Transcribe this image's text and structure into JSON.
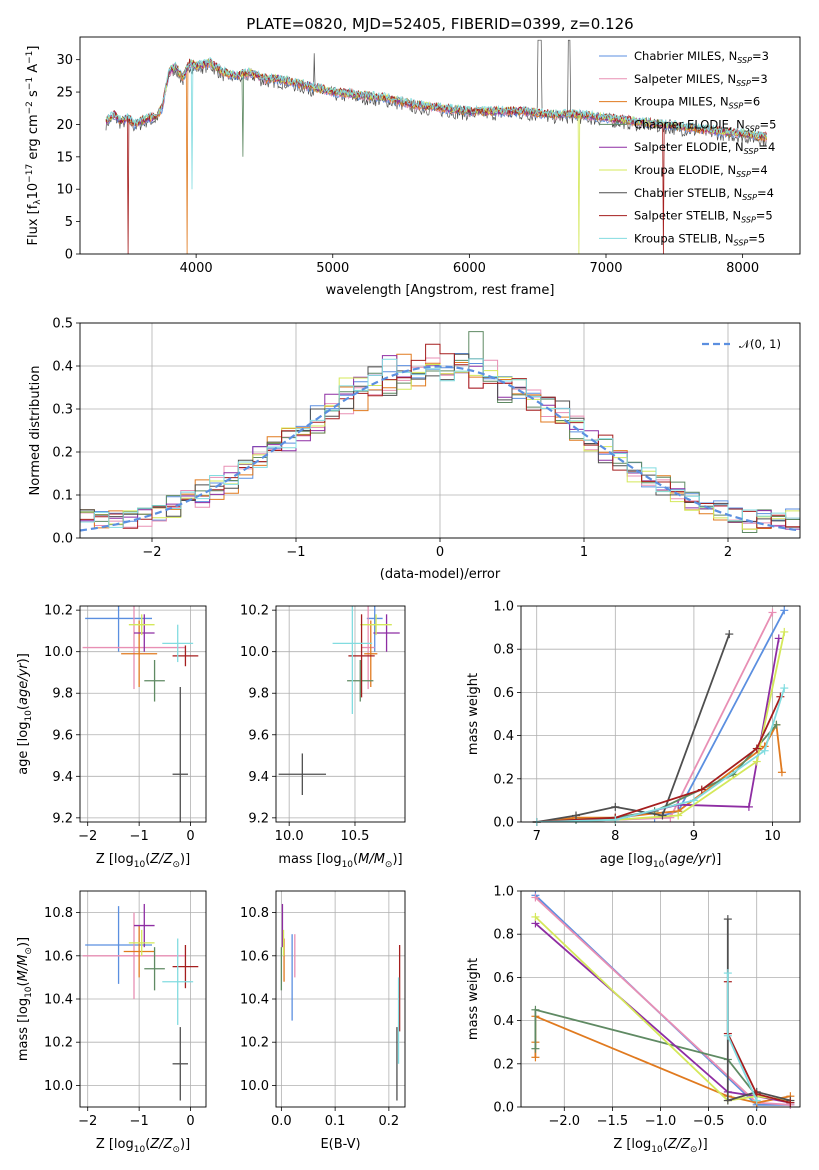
{
  "title": "PLATE=0820, MJD=52405, FIBERID=0399, z=0.126",
  "colors": {
    "Chabrier MILES": "#5b8fe0",
    "Salpeter MILES": "#e88fb4",
    "Kroupa MILES": "#e07a1f",
    "Chabrier ELODIE": "#5f8a63",
    "Salpeter ELODIE": "#8e2da3",
    "Kroupa ELODIE": "#d4e85a",
    "Chabrier STELIB": "#4f4f4f",
    "Salpeter STELIB": "#a51e1e",
    "Kroupa STELIB": "#82dce0"
  },
  "chart_data": [
    {
      "id": "spectrum",
      "type": "line",
      "xlabel": "wavelength [Angstrom, rest frame]",
      "ylabel_parts": [
        "Flux [f",
        "λ",
        "10",
        "−17",
        " erg cm",
        "−2",
        " s",
        "−1",
        " A",
        "−1",
        "]"
      ],
      "xlim": [
        3150,
        8420
      ],
      "ylim": [
        0,
        33.5
      ],
      "xticks": [
        4000,
        5000,
        6000,
        7000,
        8000
      ],
      "yticks": [
        0,
        5,
        10,
        15,
        20,
        25,
        30
      ],
      "legend_position": "top-right",
      "legend": [
        {
          "base": "Chabrier MILES, N",
          "sub": "SSP",
          "tail": "=3",
          "model": "Chabrier MILES"
        },
        {
          "base": "Salpeter MILES, N",
          "sub": "SSP",
          "tail": "=3",
          "model": "Salpeter MILES"
        },
        {
          "base": "Kroupa MILES, N",
          "sub": "SSP",
          "tail": "=6",
          "model": "Kroupa MILES"
        },
        {
          "base": "Chabrier ELODIE, N",
          "sub": "SSP",
          "tail": "=5",
          "model": "Chabrier ELODIE"
        },
        {
          "base": "Salpeter ELODIE, N",
          "sub": "SSP",
          "tail": "=4",
          "model": "Salpeter ELODIE"
        },
        {
          "base": "Kroupa ELODIE, N",
          "sub": "SSP",
          "tail": "=4",
          "model": "Kroupa ELODIE"
        },
        {
          "base": "Chabrier STELIB, N",
          "sub": "SSP",
          "tail": "=4",
          "model": "Chabrier STELIB"
        },
        {
          "base": "Salpeter STELIB, N",
          "sub": "SSP",
          "tail": "=5",
          "model": "Salpeter STELIB"
        },
        {
          "base": "Kroupa STELIB, N",
          "sub": "SSP",
          "tail": "=5",
          "model": "Kroupa STELIB"
        }
      ],
      "data_x": [
        3340,
        3400,
        3450,
        3500,
        3550,
        3600,
        3650,
        3700,
        3750,
        3800,
        3850,
        3900,
        3950,
        4000,
        4100,
        4200,
        4300,
        4400,
        4500,
        4600,
        4800,
        5000,
        5200,
        5400,
        5600,
        5800,
        6000,
        6200,
        6400,
        6600,
        6800,
        7000,
        7200,
        7400,
        7600,
        7800,
        8000,
        8180
      ],
      "data_y": [
        20.5,
        21.5,
        20.5,
        21,
        20,
        20.5,
        21,
        21,
        22.5,
        28,
        29,
        27,
        29.5,
        29,
        29.5,
        28,
        27.5,
        28,
        27,
        27,
        26,
        25,
        24.5,
        24,
        23,
        22.5,
        22,
        22,
        22,
        21.5,
        21.5,
        21,
        20.5,
        20,
        19.5,
        19,
        18.5,
        18
      ],
      "drops": [
        {
          "x": 3500,
          "y": 0,
          "model": "Salpeter STELIB"
        },
        {
          "x": 3933,
          "y": 0,
          "model": "Kroupa MILES"
        },
        {
          "x": 3968,
          "y": 10,
          "model": "Kroupa STELIB"
        },
        {
          "x": 4340,
          "y": 15,
          "model": "Chabrier ELODIE"
        },
        {
          "x": 6800,
          "y": 0,
          "model": "Kroupa ELODIE"
        },
        {
          "x": 7420,
          "y": 0,
          "model": "Salpeter STELIB"
        }
      ]
    },
    {
      "id": "residuals",
      "type": "histogram",
      "xlabel": "(data-model)/error",
      "ylabel": "Normed distribution",
      "xlim": [
        -2.5,
        2.5
      ],
      "ylim": [
        0,
        0.5
      ],
      "xticks": [
        -2,
        -1,
        0,
        1,
        2
      ],
      "yticks": [
        0.0,
        0.1,
        0.2,
        0.3,
        0.4,
        0.5
      ],
      "legend_position": "top-right",
      "legend_label": "𝒩(0, 1)",
      "reference_curve": {
        "name": "N(0,1)",
        "mean": 0,
        "sigma": 1,
        "color": "#5b8fe0"
      },
      "bin_width": 0.1
    },
    {
      "id": "age-vs-Z",
      "type": "errorbar",
      "xlabel_parts": [
        "Z [log",
        "10",
        "(",
        "Z/Z",
        "⊙",
        ")]"
      ],
      "ylabel_parts": [
        "age  [log",
        "10",
        "(",
        "age/yr",
        ")]"
      ],
      "xlim": [
        -2.15,
        0.3
      ],
      "ylim": [
        9.18,
        10.22
      ],
      "xticks": [
        -2,
        -1,
        0
      ],
      "yticks": [
        9.2,
        9.4,
        9.6,
        9.8,
        10.0,
        10.2
      ],
      "points": [
        {
          "model": "Chabrier MILES",
          "x": -1.4,
          "xerr": 0.65,
          "y": 10.16,
          "yerr": 0.16
        },
        {
          "model": "Salpeter MILES",
          "x": -1.1,
          "xerr": 1.0,
          "y": 10.02,
          "yerr": 0.2
        },
        {
          "model": "Kroupa MILES",
          "x": -1.0,
          "xerr": 0.35,
          "y": 9.99,
          "yerr": 0.16
        },
        {
          "model": "Chabrier ELODIE",
          "x": -0.7,
          "xerr": 0.2,
          "y": 9.86,
          "yerr": 0.1
        },
        {
          "model": "Salpeter ELODIE",
          "x": -0.9,
          "xerr": 0.2,
          "y": 10.09,
          "yerr": 0.09
        },
        {
          "model": "Kroupa ELODIE",
          "x": -0.95,
          "xerr": 0.25,
          "y": 10.13,
          "yerr": 0.05
        },
        {
          "model": "Chabrier STELIB",
          "x": -0.2,
          "xerr": 0.15,
          "y": 9.41,
          "yerr": 0.42
        },
        {
          "model": "Salpeter STELIB",
          "x": -0.1,
          "xerr": 0.25,
          "y": 9.98,
          "yerr": 0.05
        },
        {
          "model": "Kroupa STELIB",
          "x": -0.25,
          "xerr": 0.3,
          "y": 10.04,
          "yerr": 0.09
        }
      ]
    },
    {
      "id": "age-vs-mass",
      "type": "errorbar",
      "xlabel_parts": [
        "mass [log",
        "10",
        "(",
        "M/M",
        "⊙",
        ")]"
      ],
      "ylabel_parts": [],
      "xlim": [
        9.9,
        10.88
      ],
      "ylim": [
        9.18,
        10.22
      ],
      "xticks": [
        10.0,
        10.5
      ],
      "yticks": [
        9.2,
        9.4,
        9.6,
        9.8,
        10.0,
        10.2
      ],
      "points": [
        {
          "model": "Chabrier MILES",
          "x": 10.65,
          "xerr": 0.06,
          "y": 10.16,
          "yerr": 0.16
        },
        {
          "model": "Salpeter MILES",
          "x": 10.6,
          "xerr": 0.05,
          "y": 10.02,
          "yerr": 0.2
        },
        {
          "model": "Kroupa MILES",
          "x": 10.62,
          "xerr": 0.05,
          "y": 9.99,
          "yerr": 0.16
        },
        {
          "model": "Chabrier ELODIE",
          "x": 10.54,
          "xerr": 0.1,
          "y": 9.86,
          "yerr": 0.1
        },
        {
          "model": "Salpeter ELODIE",
          "x": 10.74,
          "xerr": 0.1,
          "y": 10.09,
          "yerr": 0.09
        },
        {
          "model": "Kroupa ELODIE",
          "x": 10.66,
          "xerr": 0.12,
          "y": 10.13,
          "yerr": 0.05
        },
        {
          "model": "Chabrier STELIB",
          "x": 10.1,
          "xerr": 0.18,
          "y": 9.41,
          "yerr": 0.1
        },
        {
          "model": "Salpeter STELIB",
          "x": 10.55,
          "xerr": 0.1,
          "y": 9.98,
          "yerr": 0.2
        },
        {
          "model": "Kroupa STELIB",
          "x": 10.48,
          "xerr": 0.15,
          "y": 10.04,
          "yerr": 0.34
        }
      ]
    },
    {
      "id": "weight-vs-age",
      "type": "line",
      "xlabel_parts": [
        "age  [log",
        "10",
        "(",
        "age/yr",
        ")]"
      ],
      "ylabel": "mass weight",
      "xlim": [
        6.8,
        10.35
      ],
      "ylim": [
        0,
        1.0
      ],
      "xticks": [
        7,
        8,
        9,
        10
      ],
      "yticks": [
        0.0,
        0.2,
        0.4,
        0.6,
        0.8,
        1.0
      ],
      "series": [
        {
          "model": "Chabrier MILES",
          "x": [
            7.0,
            7.5,
            8.0,
            8.5,
            8.8,
            10.15
          ],
          "y": [
            0.0,
            0.01,
            0.01,
            0.02,
            0.05,
            0.98
          ]
        },
        {
          "model": "Salpeter MILES",
          "x": [
            7.0,
            8.0,
            8.7,
            10.0
          ],
          "y": [
            0.0,
            0.01,
            0.02,
            0.97
          ]
        },
        {
          "model": "Kroupa MILES",
          "x": [
            7.0,
            7.5,
            8.0,
            8.5,
            8.8,
            9.9,
            10.05,
            10.12
          ],
          "y": [
            0.0,
            0.02,
            0.02,
            0.04,
            0.05,
            0.35,
            0.45,
            0.23
          ]
        },
        {
          "model": "Chabrier ELODIE",
          "x": [
            7.0,
            7.5,
            8.0,
            8.5,
            9.5,
            10.05
          ],
          "y": [
            0.0,
            0.01,
            0.02,
            0.05,
            0.22,
            0.45
          ]
        },
        {
          "model": "Salpeter ELODIE",
          "x": [
            7.0,
            8.0,
            8.8,
            9.7,
            10.08
          ],
          "y": [
            0.0,
            0.01,
            0.08,
            0.07,
            0.85
          ]
        },
        {
          "model": "Kroupa ELODIE",
          "x": [
            7.0,
            8.0,
            8.8,
            9.8,
            10.15
          ],
          "y": [
            0.0,
            0.01,
            0.03,
            0.28,
            0.88
          ]
        },
        {
          "model": "Chabrier STELIB",
          "x": [
            7.0,
            7.5,
            8.0,
            8.6,
            9.45
          ],
          "y": [
            0.0,
            0.03,
            0.07,
            0.03,
            0.87
          ]
        },
        {
          "model": "Salpeter STELIB",
          "x": [
            7.0,
            8.0,
            9.1,
            9.8,
            10.1
          ],
          "y": [
            0.0,
            0.02,
            0.15,
            0.34,
            0.58
          ]
        },
        {
          "model": "Kroupa STELIB",
          "x": [
            7.0,
            8.0,
            9.0,
            9.9,
            10.15
          ],
          "y": [
            0.0,
            0.01,
            0.1,
            0.33,
            0.62
          ]
        }
      ]
    },
    {
      "id": "mass-vs-Z",
      "type": "errorbar",
      "xlabel_parts": [
        "Z [log",
        "10",
        "(",
        "Z/Z",
        "⊙",
        ")]"
      ],
      "ylabel_parts": [
        "mass [log",
        "10",
        "(",
        "M/M",
        "⊙",
        ")]"
      ],
      "xlim": [
        -2.15,
        0.3
      ],
      "ylim": [
        9.9,
        10.9
      ],
      "xticks": [
        -2,
        -1,
        0
      ],
      "yticks": [
        10.0,
        10.2,
        10.4,
        10.6,
        10.8
      ],
      "points": [
        {
          "model": "Chabrier MILES",
          "x": -1.4,
          "xerr": 0.65,
          "y": 10.65,
          "yerr": 0.18
        },
        {
          "model": "Salpeter MILES",
          "x": -1.1,
          "xerr": 1.0,
          "y": 10.6,
          "yerr": 0.2
        },
        {
          "model": "Kroupa MILES",
          "x": -1.0,
          "xerr": 0.3,
          "y": 10.62,
          "yerr": 0.12
        },
        {
          "model": "Chabrier ELODIE",
          "x": -0.7,
          "xerr": 0.2,
          "y": 10.54,
          "yerr": 0.1
        },
        {
          "model": "Salpeter ELODIE",
          "x": -0.9,
          "xerr": 0.2,
          "y": 10.74,
          "yerr": 0.1
        },
        {
          "model": "Kroupa ELODIE",
          "x": -0.95,
          "xerr": 0.25,
          "y": 10.66,
          "yerr": 0.06
        },
        {
          "model": "Chabrier STELIB",
          "x": -0.2,
          "xerr": 0.15,
          "y": 10.1,
          "yerr": 0.17
        },
        {
          "model": "Salpeter STELIB",
          "x": -0.1,
          "xerr": 0.25,
          "y": 10.55,
          "yerr": 0.1
        },
        {
          "model": "Kroupa STELIB",
          "x": -0.25,
          "xerr": 0.3,
          "y": 10.48,
          "yerr": 0.2
        }
      ]
    },
    {
      "id": "mass-vs-ebv",
      "type": "errorbar",
      "xlabel": "E(B-V)",
      "xlim": [
        -0.01,
        0.23
      ],
      "ylim": [
        9.9,
        10.9
      ],
      "xticks": [
        0.0,
        0.1,
        0.2
      ],
      "yticks": [
        10.0,
        10.2,
        10.4,
        10.6,
        10.8
      ],
      "points": [
        {
          "model": "Chabrier MILES",
          "x": 0.02,
          "xerr": 0.0,
          "y": 10.5,
          "yerr": 0.2
        },
        {
          "model": "Salpeter MILES",
          "x": 0.025,
          "xerr": 0.0,
          "y": 10.6,
          "yerr": 0.1
        },
        {
          "model": "Kroupa MILES",
          "x": 0.005,
          "xerr": 0.0,
          "y": 10.58,
          "yerr": 0.1
        },
        {
          "model": "Chabrier ELODIE",
          "x": 0.0,
          "xerr": 0.0,
          "y": 10.54,
          "yerr": 0.1
        },
        {
          "model": "Salpeter ELODIE",
          "x": 0.002,
          "xerr": 0.0,
          "y": 10.74,
          "yerr": 0.1
        },
        {
          "model": "Kroupa ELODIE",
          "x": 0.004,
          "xerr": 0.0,
          "y": 10.66,
          "yerr": 0.06
        },
        {
          "model": "Chabrier STELIB",
          "x": 0.215,
          "xerr": 0.0,
          "y": 10.1,
          "yerr": 0.17
        },
        {
          "model": "Salpeter STELIB",
          "x": 0.22,
          "xerr": 0.0,
          "y": 10.45,
          "yerr": 0.2
        },
        {
          "model": "Kroupa STELIB",
          "x": 0.218,
          "xerr": 0.0,
          "y": 10.3,
          "yerr": 0.2
        }
      ]
    },
    {
      "id": "weight-vs-Z",
      "type": "line",
      "xlabel_parts": [
        "Z [log",
        "10",
        "(",
        "Z/Z",
        "⊙",
        ")]"
      ],
      "ylabel": "mass weight",
      "xlim": [
        -2.45,
        0.45
      ],
      "ylim": [
        0,
        1.0
      ],
      "xticks": [
        -2.0,
        -1.5,
        -1.0,
        -0.5,
        0.0
      ],
      "yticks": [
        0.0,
        0.2,
        0.4,
        0.6,
        0.8,
        1.0
      ],
      "series": [
        {
          "model": "Chabrier MILES",
          "x": [
            -2.3,
            0.0,
            0.35
          ],
          "y": [
            0.98,
            0.01,
            0.01
          ]
        },
        {
          "model": "Salpeter MILES",
          "x": [
            -2.3,
            0.0,
            0.35
          ],
          "y": [
            0.97,
            0.02,
            0.01
          ]
        },
        {
          "model": "Kroupa MILES",
          "x": [
            -2.3,
            -2.3,
            -2.3,
            -0.3,
            0.0,
            0.35
          ],
          "y": [
            0.23,
            0.3,
            0.42,
            0.05,
            0.02,
            0.05
          ]
        },
        {
          "model": "Chabrier ELODIE",
          "x": [
            -2.3,
            -2.3,
            -0.3,
            0.0
          ],
          "y": [
            0.27,
            0.45,
            0.22,
            0.05
          ]
        },
        {
          "model": "Salpeter ELODIE",
          "x": [
            -2.3,
            -0.3,
            0.0,
            0.35
          ],
          "y": [
            0.85,
            0.07,
            0.05,
            0.02
          ]
        },
        {
          "model": "Kroupa ELODIE",
          "x": [
            -2.3,
            -0.3,
            0.0,
            0.35
          ],
          "y": [
            0.88,
            0.03,
            0.05,
            0.03
          ]
        },
        {
          "model": "Chabrier STELIB",
          "x": [
            -0.3,
            -0.3,
            0.0,
            0.35
          ],
          "y": [
            0.87,
            0.03,
            0.07,
            0.03
          ]
        },
        {
          "model": "Salpeter STELIB",
          "x": [
            -0.3,
            -0.3,
            0.0,
            0.35
          ],
          "y": [
            0.58,
            0.34,
            0.06,
            0.02
          ]
        },
        {
          "model": "Kroupa STELIB",
          "x": [
            -0.3,
            -0.3,
            0.0
          ],
          "y": [
            0.62,
            0.33,
            0.03
          ]
        }
      ]
    }
  ]
}
